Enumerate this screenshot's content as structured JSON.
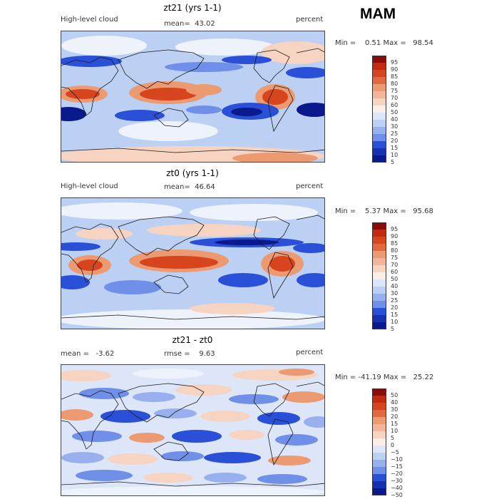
{
  "season": "MAM",
  "palette": {
    "deep_blue": "#0a1a8c",
    "blue": "#2a50d8",
    "mid_blue": "#6f8fe8",
    "light_blue": "#bcd0f4",
    "pale": "#eef2fb",
    "peach": "#f7d3c2",
    "orange": "#ec9a72",
    "red": "#d7451e",
    "dark_red": "#8a0c08",
    "coast": "#1b1b1b"
  },
  "panels": [
    {
      "id": "zt21",
      "title": "zt21 (yrs 1-1)",
      "left_label": "High-level cloud",
      "center_label": "mean=  43.02",
      "units": "percent",
      "min_max": "Min =    0.51 Max =   98.54",
      "colorbar_levels": [
        "95",
        "90",
        "85",
        "80",
        "75",
        "70",
        "60",
        "50",
        "40",
        "30",
        "25",
        "20",
        "15",
        "10",
        "5"
      ]
    },
    {
      "id": "zt0",
      "title": "zt0 (yrs 1-1)",
      "left_label": "High-level cloud",
      "center_label": "mean=  46.64",
      "units": "percent",
      "min_max": "Min =    5.37 Max =   95.68",
      "colorbar_levels": [
        "95",
        "90",
        "85",
        "80",
        "75",
        "70",
        "60",
        "50",
        "40",
        "30",
        "25",
        "20",
        "15",
        "10",
        "5"
      ]
    },
    {
      "id": "diff",
      "title": "zt21 - zt0",
      "left_label": "mean =   -3.62",
      "center_label": "rmse =    9.63",
      "units": "percent",
      "min_max": "Min = -41.19 Max =   25.22",
      "colorbar_levels": [
        "50",
        "40",
        "30",
        "20",
        "15",
        "10",
        "5",
        "0",
        "−5",
        "−10",
        "−15",
        "−20",
        "−30",
        "−40",
        "−50"
      ]
    }
  ],
  "chart_data": [
    {
      "type": "heatmap",
      "title": "zt21 (yrs 1-1)",
      "variable": "High-level cloud",
      "units": "percent",
      "mean": 43.02,
      "min": 0.51,
      "max": 98.54,
      "contour_levels": [
        5,
        10,
        15,
        20,
        25,
        30,
        40,
        50,
        60,
        70,
        75,
        80,
        85,
        90,
        95
      ]
    },
    {
      "type": "heatmap",
      "title": "zt0 (yrs 1-1)",
      "variable": "High-level cloud",
      "units": "percent",
      "mean": 46.64,
      "min": 5.37,
      "max": 95.68,
      "contour_levels": [
        5,
        10,
        15,
        20,
        25,
        30,
        40,
        50,
        60,
        70,
        75,
        80,
        85,
        90,
        95
      ]
    },
    {
      "type": "heatmap",
      "title": "zt21 - zt0",
      "units": "percent",
      "mean": -3.62,
      "rmse": 9.63,
      "min": -41.19,
      "max": 25.22,
      "contour_levels": [
        -50,
        -40,
        -30,
        -20,
        -15,
        -10,
        -5,
        0,
        5,
        10,
        15,
        20,
        30,
        40,
        50
      ]
    }
  ]
}
